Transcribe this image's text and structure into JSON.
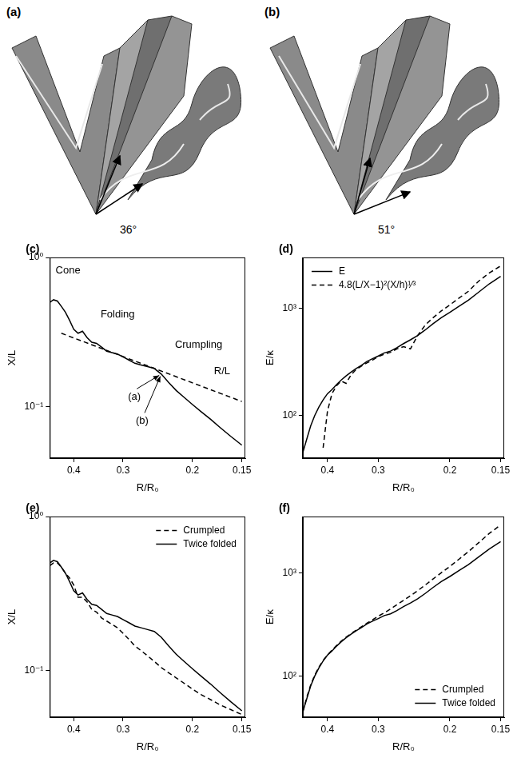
{
  "images": [
    {
      "label": "(a)",
      "angle": "36°"
    },
    {
      "label": "(b)",
      "angle": "51°"
    }
  ],
  "chart_data": [
    {
      "type": "line",
      "panel": "(c)",
      "x_label": "R/R₀",
      "y_label": "X/L",
      "log": true,
      "grid": false,
      "annotations": [
        "Cone",
        "Folding",
        "Crumpling",
        "R/L",
        "(a)",
        "(b)"
      ],
      "x": [
        0.46,
        0.45,
        0.44,
        0.43,
        0.42,
        0.41,
        0.4,
        0.39,
        0.38,
        0.37,
        0.36,
        0.35,
        0.34,
        0.33,
        0.32,
        0.31,
        0.3,
        0.29,
        0.28,
        0.27,
        0.26,
        0.25,
        0.24,
        0.23,
        0.22,
        0.21,
        0.2,
        0.19,
        0.18,
        0.17,
        0.16,
        0.15
      ],
      "series": [
        {
          "color": "#000000",
          "line_style": "solid",
          "values": [
            0.5,
            0.52,
            0.51,
            0.47,
            0.43,
            0.38,
            0.33,
            0.31,
            0.32,
            0.29,
            0.27,
            0.265,
            0.25,
            0.235,
            0.23,
            0.225,
            0.215,
            0.205,
            0.195,
            0.19,
            0.185,
            0.18,
            0.165,
            0.145,
            0.128,
            0.115,
            0.103,
            0.092,
            0.082,
            0.072,
            0.063,
            0.055
          ]
        },
        {
          "color": "#000000",
          "line_style": "dashed",
          "values": [
            null,
            null,
            null,
            0.31,
            null,
            null,
            null,
            null,
            null,
            null,
            null,
            null,
            null,
            null,
            null,
            null,
            null,
            null,
            null,
            null,
            null,
            null,
            null,
            null,
            null,
            null,
            null,
            null,
            null,
            null,
            null,
            0.108
          ]
        }
      ],
      "xlim": [
        0.46,
        0.147
      ],
      "xticks": [
        0.4,
        0.3,
        0.2,
        0.15
      ],
      "ylim": [
        0.045,
        1
      ],
      "yticks": [
        {
          "value": 0.1,
          "label": "10⁻¹"
        },
        {
          "value": 1,
          "label": "10⁰"
        }
      ]
    },
    {
      "type": "line",
      "panel": "(d)",
      "x_label": "R/R₀",
      "y_label": "E/κ",
      "log": true,
      "grid": false,
      "legend": "upper left",
      "x": [
        0.46,
        0.45,
        0.44,
        0.43,
        0.42,
        0.41,
        0.4,
        0.39,
        0.38,
        0.37,
        0.36,
        0.35,
        0.34,
        0.33,
        0.32,
        0.31,
        0.3,
        0.29,
        0.28,
        0.27,
        0.26,
        0.25,
        0.24,
        0.23,
        0.22,
        0.21,
        0.2,
        0.19,
        0.18,
        0.17,
        0.16,
        0.15
      ],
      "series": [
        {
          "name": "E",
          "color": "#000000",
          "line_style": "solid",
          "values": [
            45,
            60,
            80,
            100,
            120,
            140,
            160,
            175,
            195,
            215,
            235,
            255,
            275,
            295,
            320,
            340,
            360,
            385,
            400,
            430,
            470,
            510,
            560,
            630,
            720,
            820,
            920,
            1050,
            1200,
            1420,
            1700,
            2000
          ]
        },
        {
          "name": "4.8(L/X−1)²(X/h)¹⁄³",
          "color": "#000000",
          "line_style": "dashed",
          "values": [
            null,
            null,
            null,
            null,
            null,
            50,
            110,
            160,
            190,
            210,
            200,
            240,
            270,
            290,
            310,
            330,
            355,
            375,
            390,
            420,
            440,
            420,
            560,
            700,
            820,
            950,
            1080,
            1250,
            1450,
            1800,
            2150,
            2500
          ]
        }
      ],
      "xlim": [
        0.46,
        0.147
      ],
      "xticks": [
        0.4,
        0.3,
        0.2,
        0.15
      ],
      "ylim": [
        40,
        3000
      ],
      "yticks": [
        {
          "value": 100,
          "label": "10²"
        },
        {
          "value": 1000,
          "label": "10³"
        }
      ]
    },
    {
      "type": "line",
      "panel": "(e)",
      "x_label": "R/R₀",
      "y_label": "X/L",
      "log": true,
      "grid": false,
      "legend": "upper right",
      "x": [
        0.46,
        0.45,
        0.44,
        0.43,
        0.42,
        0.41,
        0.4,
        0.39,
        0.38,
        0.37,
        0.36,
        0.35,
        0.34,
        0.33,
        0.32,
        0.31,
        0.3,
        0.29,
        0.28,
        0.27,
        0.26,
        0.25,
        0.24,
        0.23,
        0.22,
        0.21,
        0.2,
        0.19,
        0.18,
        0.17,
        0.16,
        0.15
      ],
      "series": [
        {
          "name": "Crumpled",
          "color": "#000000",
          "line_style": "dashed",
          "values": [
            0.48,
            0.5,
            0.5,
            0.47,
            0.43,
            0.4,
            0.36,
            0.3,
            0.3,
            0.28,
            0.25,
            0.24,
            0.22,
            0.21,
            0.2,
            0.19,
            0.175,
            0.16,
            0.145,
            0.135,
            0.125,
            0.115,
            0.105,
            0.097,
            0.09,
            0.083,
            0.076,
            0.07,
            0.065,
            0.06,
            0.056,
            0.052
          ]
        },
        {
          "name": "Twice folded",
          "color": "#000000",
          "line_style": "solid",
          "values": [
            0.5,
            0.52,
            0.51,
            0.47,
            0.43,
            0.38,
            0.33,
            0.31,
            0.32,
            0.29,
            0.27,
            0.265,
            0.25,
            0.235,
            0.23,
            0.225,
            0.215,
            0.205,
            0.195,
            0.19,
            0.185,
            0.18,
            0.165,
            0.145,
            0.128,
            0.115,
            0.103,
            0.092,
            0.082,
            0.072,
            0.063,
            0.055
          ]
        }
      ],
      "xlim": [
        0.46,
        0.147
      ],
      "xticks": [
        0.4,
        0.3,
        0.2,
        0.15
      ],
      "ylim": [
        0.05,
        1
      ],
      "yticks": [
        {
          "value": 0.1,
          "label": "10⁻¹"
        },
        {
          "value": 1,
          "label": "10⁰"
        }
      ]
    },
    {
      "type": "line",
      "panel": "(f)",
      "x_label": "R/R₀",
      "y_label": "E/κ",
      "log": true,
      "grid": false,
      "legend": "lower right",
      "x": [
        0.46,
        0.45,
        0.44,
        0.43,
        0.42,
        0.41,
        0.4,
        0.39,
        0.38,
        0.37,
        0.36,
        0.35,
        0.34,
        0.33,
        0.32,
        0.31,
        0.3,
        0.29,
        0.28,
        0.27,
        0.26,
        0.25,
        0.24,
        0.23,
        0.22,
        0.21,
        0.2,
        0.19,
        0.18,
        0.17,
        0.16,
        0.15
      ],
      "series": [
        {
          "name": "Crumpled",
          "color": "#000000",
          "line_style": "dashed",
          "values": [
            45,
            62,
            82,
            102,
            122,
            142,
            160,
            178,
            198,
            218,
            238,
            258,
            278,
            300,
            325,
            350,
            380,
            410,
            445,
            490,
            540,
            600,
            670,
            760,
            870,
            1000,
            1150,
            1350,
            1600,
            1950,
            2400,
            2900
          ]
        },
        {
          "name": "Twice folded",
          "color": "#000000",
          "line_style": "solid",
          "values": [
            45,
            60,
            80,
            100,
            120,
            140,
            160,
            175,
            195,
            215,
            235,
            255,
            275,
            295,
            320,
            340,
            360,
            385,
            400,
            430,
            470,
            510,
            560,
            630,
            720,
            820,
            920,
            1050,
            1200,
            1420,
            1700,
            2000
          ]
        }
      ],
      "xlim": [
        0.46,
        0.147
      ],
      "xticks": [
        0.4,
        0.3,
        0.2,
        0.15
      ],
      "ylim": [
        40,
        3500
      ],
      "yticks": [
        {
          "value": 100,
          "label": "10²"
        },
        {
          "value": 1000,
          "label": "10³"
        }
      ]
    }
  ]
}
